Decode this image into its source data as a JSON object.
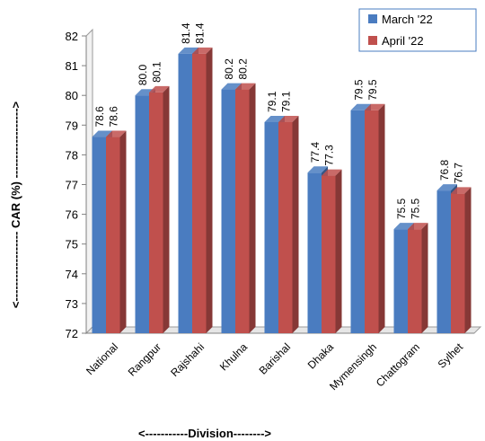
{
  "chart_data": {
    "type": "bar",
    "categories": [
      "National",
      "Rangpur",
      "Rajshahi",
      "Khulna",
      "Barishal",
      "Dhaka",
      "Mymensingh",
      "Chattogram",
      "Sylhet"
    ],
    "series": [
      {
        "name": "March '22",
        "values": [
          78.6,
          80.0,
          81.4,
          80.2,
          79.1,
          77.4,
          79.5,
          75.5,
          76.8
        ],
        "labels": [
          "78.6",
          "80.0",
          "81.4",
          "80.2",
          "79.1",
          "77.4",
          "79.5",
          "75.5",
          "76.8"
        ],
        "color": "#4a7cc0"
      },
      {
        "name": "April '22",
        "values": [
          78.6,
          80.1,
          81.4,
          80.2,
          79.1,
          77.3,
          79.5,
          75.5,
          76.7
        ],
        "labels": [
          "78.6",
          "80.1",
          "81.4",
          "80.2",
          "79.1",
          "77.3",
          "79.5",
          "75.5",
          "76.7"
        ],
        "color": "#c0504d"
      }
    ],
    "xlabel": "<-----------Division-------->",
    "ylabel": "<------------------ CAR (%) ------------------>",
    "ylim": [
      72,
      82
    ],
    "yticks": [
      "72",
      "73",
      "74",
      "75",
      "76",
      "77",
      "78",
      "79",
      "80",
      "81",
      "82"
    ],
    "legend": "top-right",
    "style": "3d-clustered-bar"
  }
}
